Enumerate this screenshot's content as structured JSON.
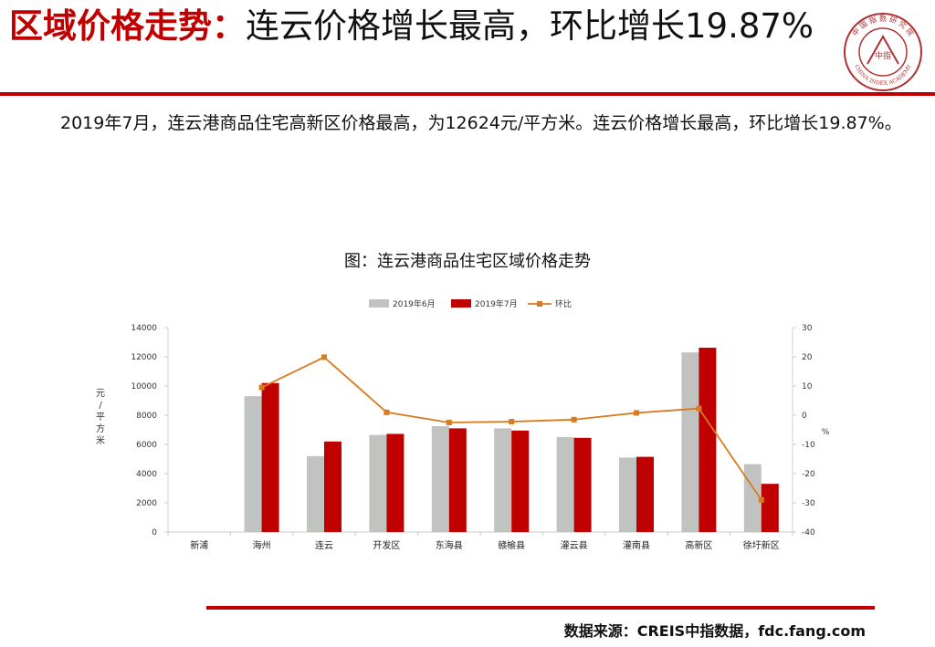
{
  "header": {
    "title_highlight": "区域价格走势：",
    "title_rest": "连云价格增长最高，环比增长19.87%"
  },
  "logo": {
    "text_top": "中 国 指 数 研 究 院",
    "text_bottom": "CHINA INDEX ACADEMY",
    "center": "中指"
  },
  "paragraph": "2019年7月，连云港商品住宅高新区价格最高，为12624元/平方米。连云价格增长最高，环比增长19.87%。",
  "colors": {
    "accent": "#c00000",
    "june": "#c0c3c0",
    "july": "#c00000",
    "mom": "#d87a1f"
  },
  "chart_data": {
    "type": "bar",
    "title": "图：连云港商品住宅区域价格走势",
    "categories": [
      "新浦",
      "海州",
      "连云",
      "开发区",
      "东海县",
      "赣榆县",
      "灌云县",
      "灌南县",
      "高新区",
      "徐圩新区"
    ],
    "series": [
      {
        "name": "2019年6月",
        "values": [
          null,
          9300,
          5200,
          6650,
          7250,
          7100,
          6500,
          5100,
          12300,
          4650
        ]
      },
      {
        "name": "2019年7月",
        "values": [
          null,
          10200,
          6200,
          6720,
          7100,
          6950,
          6450,
          5150,
          12624,
          3300
        ]
      },
      {
        "name": "环比",
        "type": "line",
        "axis": "right",
        "values": [
          null,
          9.5,
          19.87,
          1.0,
          -2.5,
          -2.2,
          -1.5,
          0.8,
          2.3,
          -29
        ]
      }
    ],
    "ylabel": "元/平方米",
    "ylim": [
      0,
      14000
    ],
    "yticks": [
      0,
      2000,
      4000,
      6000,
      8000,
      10000,
      12000,
      14000
    ],
    "y2label": "%",
    "y2lim": [
      -40,
      30
    ],
    "y2ticks": [
      -40,
      -30,
      -20,
      -10,
      0,
      10,
      20,
      30
    ],
    "legend": "top",
    "grid": false
  },
  "source": "数据来源：CREIS中指数据，fdc.fang.com"
}
